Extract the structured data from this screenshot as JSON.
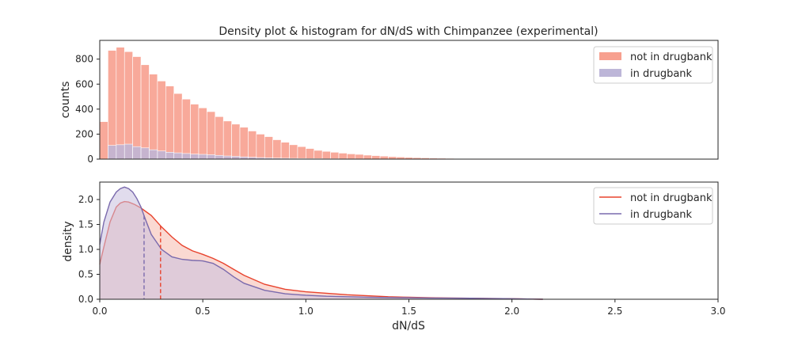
{
  "chart_data": [
    {
      "type": "bar",
      "title": "Density plot & histogram for dN/dS with Chimpanzee (experimental)",
      "xlabel": "",
      "ylabel": "counts",
      "xlim": [
        0.0,
        3.0
      ],
      "ylim": [
        0,
        950
      ],
      "yticks": [
        0,
        200,
        400,
        600,
        800
      ],
      "bin_width": 0.04,
      "legend_position": "top-right",
      "series": [
        {
          "name": "not in drugbank",
          "color": "#f7a08f",
          "values": [
            300,
            870,
            895,
            860,
            820,
            755,
            680,
            625,
            585,
            525,
            480,
            440,
            410,
            380,
            340,
            305,
            280,
            255,
            225,
            200,
            180,
            155,
            135,
            115,
            100,
            85,
            70,
            62,
            55,
            48,
            42,
            38,
            32,
            28,
            24,
            20,
            17,
            14,
            12,
            10,
            8,
            7,
            6,
            5,
            5,
            4,
            4,
            3,
            3,
            2,
            2,
            2,
            1,
            1,
            1,
            1,
            1,
            1,
            1,
            0,
            0,
            0,
            0,
            0,
            0,
            0,
            0,
            0,
            0,
            0,
            0,
            0,
            0,
            0,
            0
          ]
        },
        {
          "name": "in drugbank",
          "color": "#bdb6d8",
          "values": [
            0,
            110,
            115,
            120,
            100,
            90,
            75,
            65,
            55,
            50,
            45,
            40,
            38,
            35,
            30,
            25,
            22,
            18,
            15,
            12,
            10,
            8,
            7,
            6,
            5,
            4,
            4,
            3,
            3,
            2,
            2,
            2,
            1,
            1,
            1,
            1,
            1,
            1,
            0,
            0,
            0,
            0,
            0,
            0,
            0,
            0,
            0,
            0,
            0,
            0,
            0,
            0,
            0,
            0,
            0,
            0,
            0,
            0,
            0,
            0,
            0,
            0,
            0,
            0,
            0,
            0,
            0,
            0,
            0,
            0,
            0,
            0,
            0,
            0,
            0
          ]
        }
      ]
    },
    {
      "type": "area",
      "title": "",
      "xlabel": "dN/dS",
      "ylabel": "density",
      "xlim": [
        0.0,
        3.0
      ],
      "ylim": [
        0.0,
        2.35
      ],
      "xticks": [
        0.0,
        0.5,
        1.0,
        1.5,
        2.0,
        2.5,
        3.0
      ],
      "xtick_labels": [
        "0.0",
        "0.5",
        "1.0",
        "1.5",
        "2.0",
        "2.5",
        "3.0"
      ],
      "yticks": [
        0.0,
        0.5,
        1.0,
        1.5,
        2.0
      ],
      "ytick_labels": [
        "0.0",
        "0.5",
        "1.0",
        "1.5",
        "2.0"
      ],
      "legend_position": "top-right",
      "series": [
        {
          "name": "not in drugbank",
          "color": "#e8432d",
          "fill": "#f6b9ad",
          "median": 0.295,
          "x": [
            0.0,
            0.02,
            0.05,
            0.08,
            0.1,
            0.12,
            0.14,
            0.17,
            0.2,
            0.25,
            0.3,
            0.35,
            0.4,
            0.45,
            0.5,
            0.55,
            0.6,
            0.65,
            0.7,
            0.8,
            0.9,
            1.0,
            1.1,
            1.2,
            1.3,
            1.4,
            1.5,
            1.6,
            1.7,
            1.8,
            1.9,
            2.0,
            2.1,
            2.15
          ],
          "y": [
            0.7,
            1.05,
            1.55,
            1.85,
            1.93,
            1.96,
            1.95,
            1.9,
            1.83,
            1.68,
            1.45,
            1.25,
            1.08,
            0.97,
            0.9,
            0.82,
            0.72,
            0.6,
            0.48,
            0.3,
            0.2,
            0.15,
            0.12,
            0.09,
            0.07,
            0.05,
            0.04,
            0.03,
            0.025,
            0.02,
            0.015,
            0.01,
            0.003,
            0.0
          ]
        },
        {
          "name": "in drugbank",
          "color": "#7a6aad",
          "fill": "#c9bfdf",
          "median": 0.215,
          "x": [
            0.0,
            0.02,
            0.05,
            0.08,
            0.1,
            0.12,
            0.14,
            0.16,
            0.18,
            0.2,
            0.22,
            0.25,
            0.3,
            0.35,
            0.4,
            0.45,
            0.5,
            0.55,
            0.6,
            0.65,
            0.7,
            0.8,
            0.9,
            1.0,
            1.1,
            1.2,
            1.3,
            1.4,
            1.5,
            1.6,
            1.7,
            1.8,
            1.9,
            2.0,
            2.1,
            2.15
          ],
          "y": [
            1.1,
            1.55,
            1.95,
            2.15,
            2.22,
            2.25,
            2.22,
            2.15,
            2.02,
            1.85,
            1.62,
            1.3,
            1.0,
            0.85,
            0.8,
            0.78,
            0.77,
            0.72,
            0.6,
            0.45,
            0.32,
            0.18,
            0.11,
            0.08,
            0.06,
            0.05,
            0.04,
            0.035,
            0.03,
            0.025,
            0.022,
            0.02,
            0.015,
            0.01,
            0.003,
            0.0
          ]
        }
      ]
    }
  ]
}
